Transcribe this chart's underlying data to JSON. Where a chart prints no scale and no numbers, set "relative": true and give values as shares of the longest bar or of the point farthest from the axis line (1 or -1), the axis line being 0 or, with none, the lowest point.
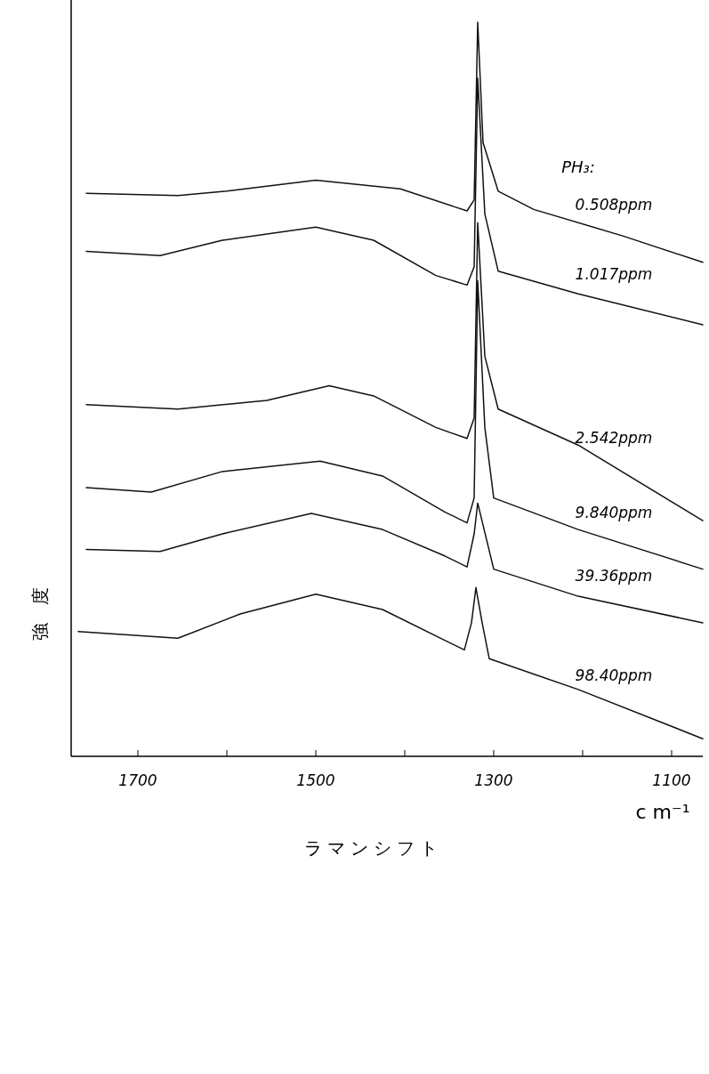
{
  "chart_data": {
    "type": "line",
    "relative": true,
    "xlabel": "ラマンシフト",
    "ylabel": "強　度",
    "legend_title": "PH₃:",
    "annotations": [
      "c m⁻¹"
    ],
    "xlim": [
      1775,
      1065
    ],
    "xticks": [
      1700,
      {
        "value": 1600,
        "label": null
      },
      1500,
      {
        "value": 1400,
        "label": null
      },
      1300,
      {
        "value": 1200,
        "label": null
      },
      1100
    ],
    "tick_labels": "x",
    "series": [
      {
        "name": "0.508ppm",
        "color": "#111111",
        "x": [
          1758,
          1655,
          1600,
          1500,
          1405,
          1345,
          1330,
          1322,
          1318,
          1312,
          1295,
          1255,
          1155,
          1065
        ],
        "values": [
          0.767,
          0.764,
          0.77,
          0.785,
          0.773,
          0.749,
          0.743,
          0.758,
          1.0,
          0.836,
          0.77,
          0.745,
          0.709,
          0.673
        ]
      },
      {
        "name": "1.017ppm",
        "color": "#111111",
        "x": [
          1758,
          1675,
          1605,
          1500,
          1435,
          1365,
          1330,
          1322,
          1318,
          1310,
          1295,
          1205,
          1065
        ],
        "values": [
          0.688,
          0.682,
          0.703,
          0.721,
          0.703,
          0.655,
          0.642,
          0.667,
          0.924,
          0.739,
          0.661,
          0.63,
          0.588
        ]
      },
      {
        "name": "2.542ppm",
        "color": "#111111",
        "x": [
          1758,
          1655,
          1555,
          1485,
          1435,
          1365,
          1330,
          1322,
          1318,
          1310,
          1295,
          1205,
          1065
        ],
        "values": [
          0.479,
          0.473,
          0.485,
          0.505,
          0.491,
          0.448,
          0.433,
          0.461,
          0.727,
          0.545,
          0.473,
          0.424,
          0.321
        ]
      },
      {
        "name": "9.840ppm",
        "color": "#111111",
        "x": [
          1758,
          1685,
          1605,
          1495,
          1425,
          1355,
          1330,
          1322,
          1318,
          1310,
          1300,
          1205,
          1065
        ],
        "values": [
          0.366,
          0.36,
          0.388,
          0.402,
          0.382,
          0.333,
          0.318,
          0.352,
          0.648,
          0.448,
          0.352,
          0.309,
          0.255
        ]
      },
      {
        "name": "39.36ppm",
        "color": "#111111",
        "x": [
          1758,
          1675,
          1605,
          1505,
          1425,
          1355,
          1330,
          1322,
          1318,
          1312,
          1300,
          1205,
          1065
        ],
        "values": [
          0.282,
          0.279,
          0.303,
          0.331,
          0.309,
          0.273,
          0.258,
          0.303,
          0.345,
          0.315,
          0.255,
          0.218,
          0.182
        ]
      },
      {
        "name": "98.40ppm",
        "color": "#111111",
        "x": [
          1767,
          1655,
          1585,
          1500,
          1425,
          1355,
          1333,
          1325,
          1320,
          1313,
          1305,
          1205,
          1065
        ],
        "values": [
          0.17,
          0.161,
          0.194,
          0.221,
          0.2,
          0.158,
          0.145,
          0.182,
          0.23,
          0.182,
          0.133,
          0.091,
          0.024
        ]
      }
    ]
  }
}
